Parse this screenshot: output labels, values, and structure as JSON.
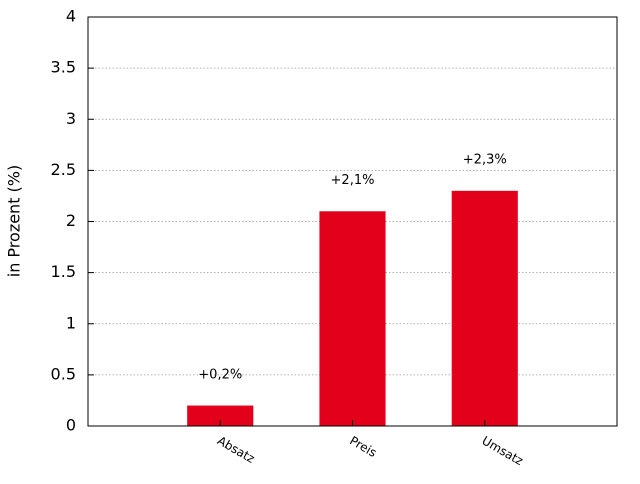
{
  "chart_data": {
    "type": "bar",
    "y_label": "in Prozent (%)",
    "categories": [
      "Absatz",
      "Preis",
      "Umsatz"
    ],
    "values": [
      0.2,
      2.1,
      2.3
    ],
    "value_labels": [
      "+0,2%",
      "+2,1%",
      "+2,3%"
    ],
    "color": "#e2001a",
    "ylim": [
      0,
      4
    ],
    "yticks": [
      0,
      0.5,
      1,
      1.5,
      2,
      2.5,
      3,
      3.5,
      4
    ],
    "grid": true
  }
}
